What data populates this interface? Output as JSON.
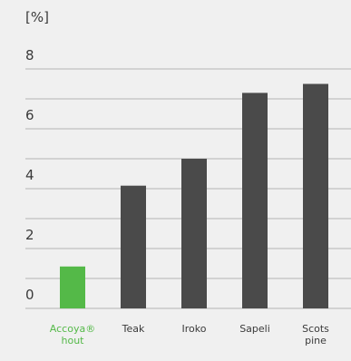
{
  "chart_data": {
    "type": "bar",
    "unit": "[%]",
    "categories": [
      [
        "Accoya®",
        "hout"
      ],
      [
        "Teak"
      ],
      [
        "Iroko"
      ],
      [
        "Sapeli"
      ],
      [
        "Scots",
        "pine"
      ]
    ],
    "values": [
      1.4,
      4.1,
      5.0,
      7.2,
      7.5
    ],
    "bar_colors": [
      "#54b948",
      "#4a4a4a",
      "#4a4a4a",
      "#4a4a4a",
      "#4a4a4a"
    ],
    "label_colors": [
      "#54b948",
      "#3a3a3a",
      "#3a3a3a",
      "#3a3a3a",
      "#3a3a3a"
    ],
    "yticks": [
      0,
      2,
      4,
      6,
      8
    ],
    "ylim": [
      0,
      8.6
    ],
    "grid": true,
    "title": "",
    "xlabel": "",
    "ylabel": ""
  }
}
